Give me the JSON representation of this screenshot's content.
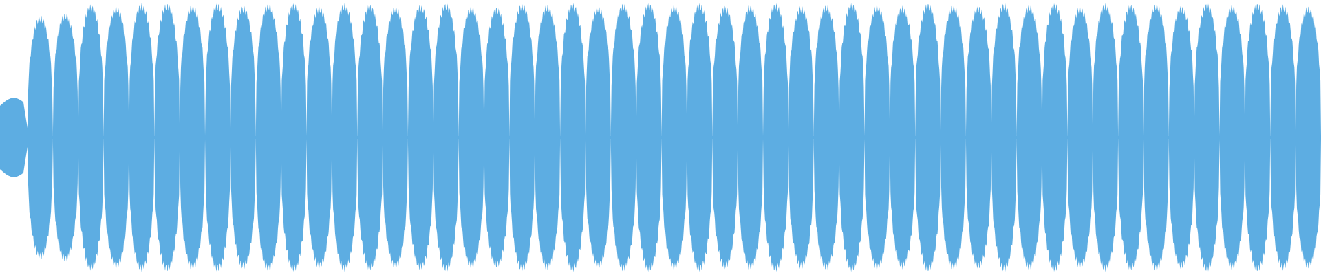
{
  "waveform": {
    "color": "#5DADE2",
    "intro_amplitude": 0.3,
    "peaks": [
      0.9,
      0.92,
      0.98,
      0.97,
      0.99,
      0.99,
      0.98,
      0.99,
      0.97,
      0.99,
      0.99,
      0.97,
      0.99,
      0.98,
      0.97,
      0.98,
      0.99,
      0.97,
      0.96,
      0.99,
      0.98,
      0.99,
      0.97,
      0.99,
      0.99,
      0.98,
      0.99,
      0.97,
      0.98,
      0.99,
      0.97,
      0.98,
      0.99,
      0.98,
      0.97,
      0.99,
      0.98,
      0.97,
      0.99,
      0.98,
      0.99,
      0.97,
      0.99,
      0.98,
      0.99,
      0.97,
      0.99,
      0.98,
      0.99,
      0.98,
      0.97
    ]
  }
}
